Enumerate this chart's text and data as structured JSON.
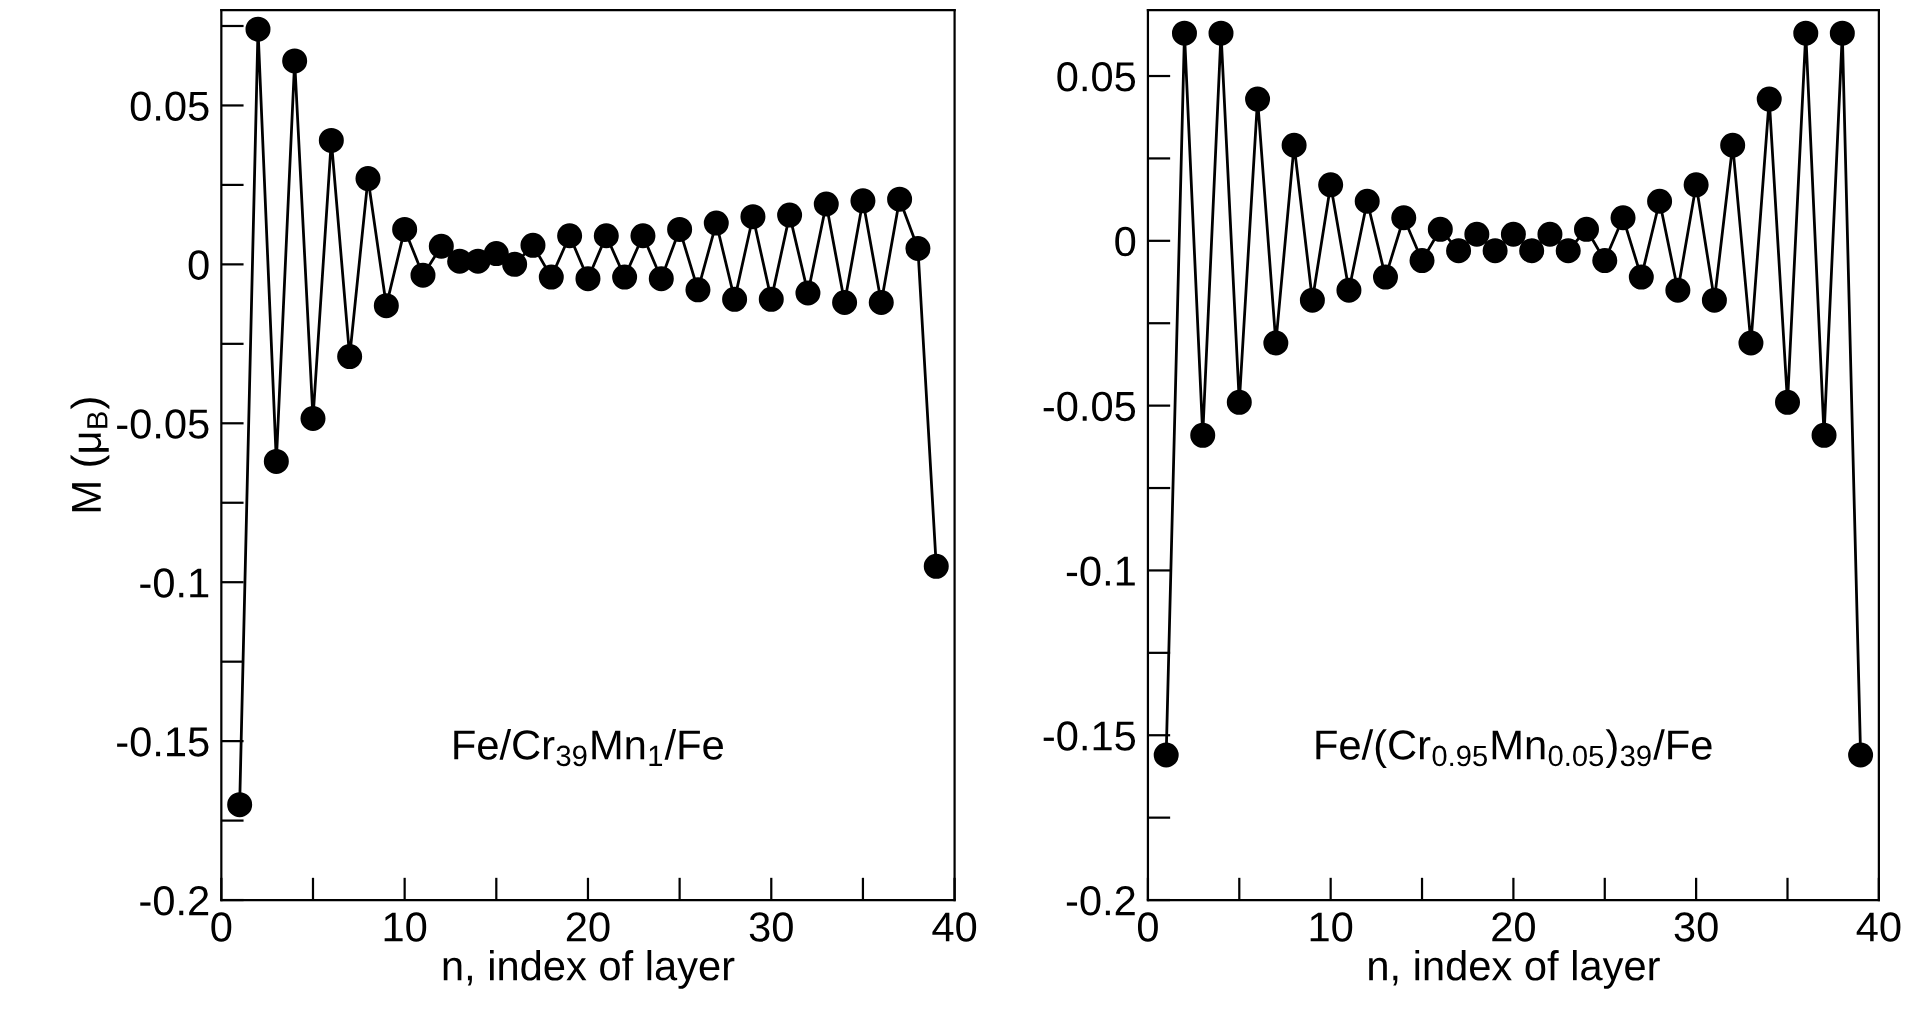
{
  "chart_data": [
    {
      "type": "line",
      "xlabel": "n, index of layer",
      "ylabel": "M (μ$_{B}$)",
      "annotations": [
        "Fe/Cr$_{39}$Mn$_{1}$/Fe"
      ],
      "x": [
        1,
        2,
        3,
        4,
        5,
        6,
        7,
        8,
        9,
        10,
        11,
        12,
        13,
        14,
        15,
        16,
        17,
        18,
        19,
        20,
        21,
        22,
        23,
        24,
        25,
        26,
        27,
        28,
        29,
        30,
        31,
        32,
        33,
        34,
        35,
        36,
        37,
        38,
        39
      ],
      "series": [
        {
          "color": "#000000",
          "values": [
            -0.17,
            0.074,
            -0.062,
            0.064,
            -0.0485,
            0.039,
            -0.029,
            0.027,
            -0.013,
            0.011,
            -0.0034,
            0.0057,
            0.001,
            0.001,
            0.0034,
            0,
            0.006,
            -0.004,
            0.009,
            -0.0045,
            0.009,
            -0.004,
            0.009,
            -0.0045,
            0.011,
            -0.008,
            0.013,
            -0.011,
            0.015,
            -0.011,
            0.0155,
            -0.009,
            0.019,
            -0.012,
            0.02,
            -0.012,
            0.0205,
            0.005,
            -0.095
          ]
        }
      ],
      "xlim": [
        0,
        40
      ],
      "xticks": [
        0,
        {
          "value": 5,
          "label": null
        },
        10,
        {
          "value": 15,
          "label": null
        },
        20,
        {
          "value": 25,
          "label": null
        },
        30,
        {
          "value": 35,
          "label": null
        },
        40
      ],
      "ylim": [
        -0.2,
        0.08
      ],
      "yticks": [
        -0.2,
        {
          "value": -0.175,
          "label": null
        },
        -0.15,
        {
          "value": -0.125,
          "label": null
        },
        -0.1,
        {
          "value": -0.075,
          "label": null
        },
        -0.05,
        {
          "value": -0.025,
          "label": null
        },
        0,
        {
          "value": 0.025,
          "label": null
        },
        0.05,
        {
          "value": 0.075,
          "label": null
        }
      ],
      "marker": "circle",
      "line_style": "solid",
      "grid": false,
      "legend": false
    },
    {
      "type": "line",
      "xlabel": "n, index of layer",
      "annotations": [
        "Fe/(Cr$_{0.95}$Mn$_{0.05}$)$_{39}$/Fe"
      ],
      "x": [
        1,
        2,
        3,
        4,
        5,
        6,
        7,
        8,
        9,
        10,
        11,
        12,
        13,
        14,
        15,
        16,
        17,
        18,
        19,
        20,
        21,
        22,
        23,
        24,
        25,
        26,
        27,
        28,
        29,
        30,
        31,
        32,
        33,
        34,
        35,
        36,
        37,
        38,
        39
      ],
      "series": [
        {
          "color": "#000000",
          "values": [
            -0.156,
            0.063,
            -0.059,
            0.063,
            -0.049,
            0.043,
            -0.031,
            0.029,
            -0.018,
            0.017,
            -0.015,
            0.012,
            -0.011,
            0.007,
            -0.006,
            0.0035,
            -0.003,
            0.002,
            -0.003,
            0.002,
            -0.003,
            0.002,
            -0.003,
            0.0035,
            -0.006,
            0.007,
            -0.011,
            0.012,
            -0.015,
            0.017,
            -0.018,
            0.029,
            -0.031,
            0.043,
            -0.049,
            0.063,
            -0.059,
            0.063,
            -0.156
          ]
        }
      ],
      "xlim": [
        0,
        40
      ],
      "xticks": [
        0,
        {
          "value": 5,
          "label": null
        },
        10,
        {
          "value": 15,
          "label": null
        },
        20,
        {
          "value": 25,
          "label": null
        },
        30,
        {
          "value": 35,
          "label": null
        },
        40
      ],
      "ylim": [
        -0.2,
        0.07
      ],
      "yticks": [
        -0.2,
        {
          "value": -0.175,
          "label": null
        },
        -0.15,
        {
          "value": -0.125,
          "label": null
        },
        -0.1,
        {
          "value": -0.075,
          "label": null
        },
        -0.05,
        {
          "value": -0.025,
          "label": null
        },
        0,
        {
          "value": 0.025,
          "label": null
        },
        0.05
      ],
      "marker": "circle",
      "line_style": "solid",
      "grid": false,
      "legend": false
    }
  ]
}
